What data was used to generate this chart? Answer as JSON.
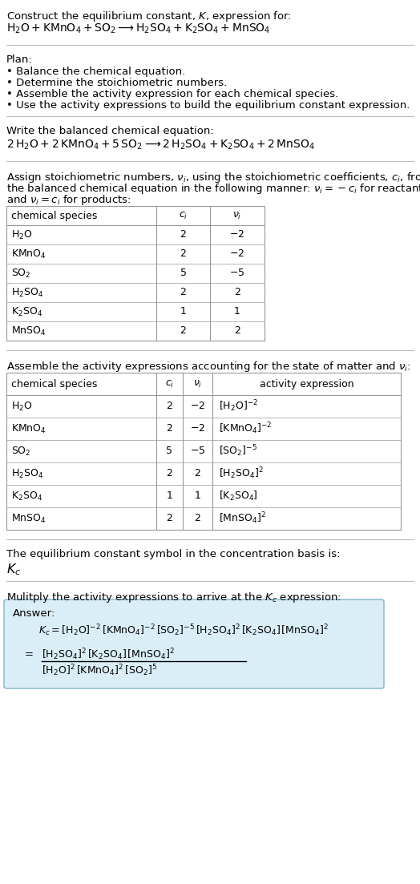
{
  "bg_color": "#ffffff",
  "text_color": "#000000",
  "table_border_color": "#999999",
  "answer_box_color": "#daeef8",
  "answer_box_border": "#7fb3cc",
  "font_size": 9.5,
  "sections": {
    "title": "Construct the equilibrium constant, $K$, expression for:",
    "rxn_unbalanced": "$\\mathrm{H_2O + KMnO_4 + SO_2} \\longrightarrow \\mathrm{H_2SO_4 + K_2SO_4 + MnSO_4}$",
    "plan_header": "Plan:",
    "plan_items": [
      "\\textbullet  Balance the chemical equation.",
      "\\textbullet  Determine the stoichiometric numbers.",
      "\\textbullet  Assemble the activity expression for each chemical species.",
      "\\textbullet  Use the activity expressions to build the equilibrium constant expression."
    ],
    "balanced_header": "Write the balanced chemical equation:",
    "rxn_balanced": "$\\mathrm{2\\,H_2O + 2\\,KMnO_4 + 5\\,SO_2} \\longrightarrow \\mathrm{2\\,H_2SO_4 + K_2SO_4 + 2\\,MnSO_4}$",
    "stoich_text1": "Assign stoichiometric numbers, $\\nu_i$, using the stoichiometric coefficients, $c_i$, from",
    "stoich_text2": "the balanced chemical equation in the following manner: $\\nu_i = -c_i$ for reactants",
    "stoich_text3": "and $\\nu_i = c_i$ for products:",
    "table1_headers": [
      "chemical species",
      "$c_i$",
      "$\\nu_i$"
    ],
    "table1_rows": [
      [
        "$\\mathrm{H_2O}$",
        "2",
        "$-2$"
      ],
      [
        "$\\mathrm{KMnO_4}$",
        "2",
        "$-2$"
      ],
      [
        "$\\mathrm{SO_2}$",
        "5",
        "$-5$"
      ],
      [
        "$\\mathrm{H_2SO_4}$",
        "2",
        "2"
      ],
      [
        "$\\mathrm{K_2SO_4}$",
        "1",
        "1"
      ],
      [
        "$\\mathrm{MnSO_4}$",
        "2",
        "2"
      ]
    ],
    "activity_header": "Assemble the activity expressions accounting for the state of matter and $\\nu_i$:",
    "table2_headers": [
      "chemical species",
      "$c_i$",
      "$\\nu_i$",
      "activity expression"
    ],
    "table2_rows": [
      [
        "$\\mathrm{H_2O}$",
        "2",
        "$-2$",
        "$[\\mathrm{H_2O}]^{-2}$"
      ],
      [
        "$\\mathrm{KMnO_4}$",
        "2",
        "$-2$",
        "$[\\mathrm{KMnO_4}]^{-2}$"
      ],
      [
        "$\\mathrm{SO_2}$",
        "5",
        "$-5$",
        "$[\\mathrm{SO_2}]^{-5}$"
      ],
      [
        "$\\mathrm{H_2SO_4}$",
        "2",
        "2",
        "$[\\mathrm{H_2SO_4}]^{2}$"
      ],
      [
        "$\\mathrm{K_2SO_4}$",
        "1",
        "1",
        "$[\\mathrm{K_2SO_4}]$"
      ],
      [
        "$\\mathrm{MnSO_4}$",
        "2",
        "2",
        "$[\\mathrm{MnSO_4}]^{2}$"
      ]
    ],
    "kc_basis_header": "The equilibrium constant symbol in the concentration basis is:",
    "kc_symbol": "$K_c$",
    "multiply_header": "Mulitply the activity expressions to arrive at the $K_c$ expression:",
    "answer_label": "Answer:",
    "kc_eq1": "$K_c = [\\mathrm{H_2O}]^{-2}\\,[\\mathrm{KMnO_4}]^{-2}\\,[\\mathrm{SO_2}]^{-5}\\,[\\mathrm{H_2SO_4}]^{2}\\,[\\mathrm{K_2SO_4}]\\,[\\mathrm{MnSO_4}]^{2}$",
    "kc_num": "$[\\mathrm{H_2SO_4}]^{2}\\,[\\mathrm{K_2SO_4}]\\,[\\mathrm{MnSO_4}]^{2}$",
    "kc_den": "$[\\mathrm{H_2O}]^{2}\\,[\\mathrm{KMnO_4}]^{2}\\,[\\mathrm{SO_2}]^{5}$"
  }
}
